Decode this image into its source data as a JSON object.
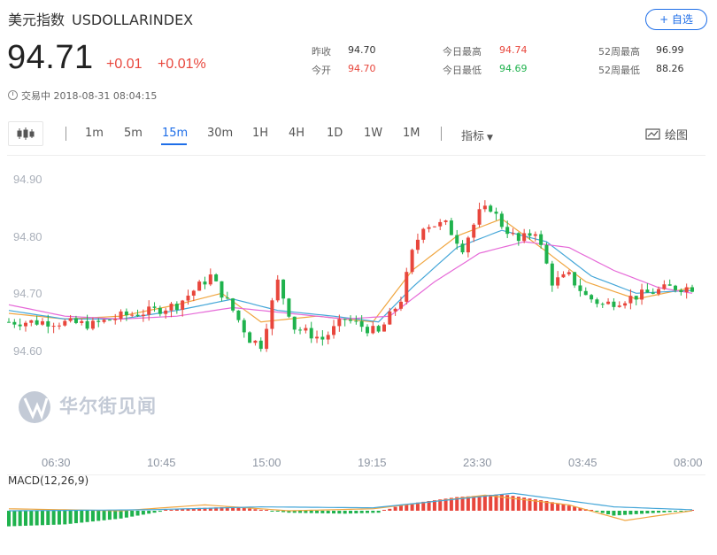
{
  "header": {
    "name": "美元指数",
    "symbol": "USDOLLARINDEX",
    "follow_label": "+ 自选",
    "price": "94.71",
    "change": "+0.01",
    "change_pct": "+0.01%",
    "status": "交易中 2018-08-31 08:04:15"
  },
  "stats": {
    "prev_close_label": "昨收",
    "prev_close": "94.70",
    "open_label": "今开",
    "open": "94.70",
    "high_label": "今日最高",
    "high": "94.74",
    "low_label": "今日最低",
    "low": "94.69",
    "w52_high_label": "52周最高",
    "w52_high": "96.99",
    "w52_low_label": "52周最低",
    "w52_low": "88.26"
  },
  "colors": {
    "up": "#e8463c",
    "down": "#1fb24d",
    "accent": "#1e6ee8",
    "ma_short": "#f0a640",
    "ma_mid": "#44a6d8",
    "ma_long": "#e66ad8"
  },
  "toolbar": {
    "periods": [
      "1m",
      "5m",
      "15m",
      "30m",
      "1H",
      "4H",
      "1D",
      "1W",
      "1M"
    ],
    "active": "15m",
    "indicator_label": "指标",
    "draw_label": "绘图"
  },
  "icons": [
    "candlestick-icon",
    "clock-icon",
    "draw-icon",
    "chevron-down-icon"
  ],
  "watermark": "华尔街见闻",
  "chart_data": [
    {
      "type": "candlestick",
      "interval": "15m",
      "yticks": [
        "94.90",
        "94.80",
        "94.70",
        "94.60"
      ],
      "xticks": [
        "06:30",
        "10:45",
        "15:00",
        "19:15",
        "23:30",
        "03:45",
        "08:00"
      ],
      "ylim": [
        94.53,
        94.93
      ],
      "grid": false,
      "anchors": [
        {
          "i": 0,
          "v": 94.65
        },
        {
          "i": 8,
          "v": 94.65
        },
        {
          "i": 15,
          "v": 94.645
        },
        {
          "i": 20,
          "v": 94.66
        },
        {
          "i": 26,
          "v": 94.67
        },
        {
          "i": 30,
          "v": 94.68
        },
        {
          "i": 36,
          "v": 94.73
        },
        {
          "i": 40,
          "v": 94.67
        },
        {
          "i": 43,
          "v": 94.62
        },
        {
          "i": 45,
          "v": 94.61
        },
        {
          "i": 48,
          "v": 94.72
        },
        {
          "i": 51,
          "v": 94.64
        },
        {
          "i": 56,
          "v": 94.62
        },
        {
          "i": 60,
          "v": 94.655
        },
        {
          "i": 66,
          "v": 94.63
        },
        {
          "i": 70,
          "v": 94.69
        },
        {
          "i": 72,
          "v": 94.77
        },
        {
          "i": 74,
          "v": 94.82
        },
        {
          "i": 78,
          "v": 94.82
        },
        {
          "i": 81,
          "v": 94.78
        },
        {
          "i": 84,
          "v": 94.84
        },
        {
          "i": 86,
          "v": 94.85
        },
        {
          "i": 88,
          "v": 94.82
        },
        {
          "i": 91,
          "v": 94.79
        },
        {
          "i": 94,
          "v": 94.81
        },
        {
          "i": 97,
          "v": 94.72
        },
        {
          "i": 100,
          "v": 94.73
        },
        {
          "i": 103,
          "v": 94.695
        },
        {
          "i": 106,
          "v": 94.68
        },
        {
          "i": 110,
          "v": 94.69
        },
        {
          "i": 114,
          "v": 94.7
        },
        {
          "i": 118,
          "v": 94.71
        },
        {
          "i": 122,
          "v": 94.71
        }
      ],
      "moving_averages": [
        {
          "anchors": [
            {
              "i": 0,
              "v": 94.665
            },
            {
              "i": 10,
              "v": 94.655
            },
            {
              "i": 20,
              "v": 94.66
            },
            {
              "i": 30,
              "v": 94.68
            },
            {
              "i": 38,
              "v": 94.7
            },
            {
              "i": 45,
              "v": 94.65
            },
            {
              "i": 55,
              "v": 94.66
            },
            {
              "i": 65,
              "v": 94.65
            },
            {
              "i": 72,
              "v": 94.74
            },
            {
              "i": 80,
              "v": 94.8
            },
            {
              "i": 88,
              "v": 94.83
            },
            {
              "i": 95,
              "v": 94.78
            },
            {
              "i": 103,
              "v": 94.72
            },
            {
              "i": 112,
              "v": 94.69
            },
            {
              "i": 122,
              "v": 94.71
            }
          ]
        },
        {
          "anchors": [
            {
              "i": 0,
              "v": 94.67
            },
            {
              "i": 10,
              "v": 94.655
            },
            {
              "i": 20,
              "v": 94.655
            },
            {
              "i": 30,
              "v": 94.67
            },
            {
              "i": 40,
              "v": 94.69
            },
            {
              "i": 48,
              "v": 94.67
            },
            {
              "i": 58,
              "v": 94.66
            },
            {
              "i": 66,
              "v": 94.65
            },
            {
              "i": 72,
              "v": 94.71
            },
            {
              "i": 80,
              "v": 94.78
            },
            {
              "i": 88,
              "v": 94.81
            },
            {
              "i": 96,
              "v": 94.79
            },
            {
              "i": 104,
              "v": 94.73
            },
            {
              "i": 112,
              "v": 94.7
            },
            {
              "i": 122,
              "v": 94.705
            }
          ]
        },
        {
          "anchors": [
            {
              "i": 0,
              "v": 94.68
            },
            {
              "i": 10,
              "v": 94.66
            },
            {
              "i": 20,
              "v": 94.655
            },
            {
              "i": 30,
              "v": 94.66
            },
            {
              "i": 40,
              "v": 94.675
            },
            {
              "i": 50,
              "v": 94.665
            },
            {
              "i": 60,
              "v": 94.655
            },
            {
              "i": 68,
              "v": 94.66
            },
            {
              "i": 76,
              "v": 94.72
            },
            {
              "i": 84,
              "v": 94.77
            },
            {
              "i": 92,
              "v": 94.79
            },
            {
              "i": 100,
              "v": 94.78
            },
            {
              "i": 108,
              "v": 94.74
            },
            {
              "i": 116,
              "v": 94.71
            },
            {
              "i": 122,
              "v": 94.7
            }
          ]
        }
      ]
    },
    {
      "type": "macd",
      "label": "MACD(12,26,9)",
      "anchors": [
        {
          "i": 0,
          "v": -0.8
        },
        {
          "i": 10,
          "v": -0.7
        },
        {
          "i": 20,
          "v": -0.4
        },
        {
          "i": 30,
          "v": 0.1
        },
        {
          "i": 40,
          "v": 0.2
        },
        {
          "i": 50,
          "v": -0.1
        },
        {
          "i": 60,
          "v": -0.15
        },
        {
          "i": 66,
          "v": -0.1
        },
        {
          "i": 70,
          "v": 0.3
        },
        {
          "i": 80,
          "v": 0.7
        },
        {
          "i": 88,
          "v": 0.85
        },
        {
          "i": 96,
          "v": 0.5
        },
        {
          "i": 102,
          "v": 0.15
        },
        {
          "i": 108,
          "v": -0.25
        },
        {
          "i": 116,
          "v": -0.1
        },
        {
          "i": 122,
          "v": 0.0
        }
      ],
      "dif_anchors": [
        {
          "i": 0,
          "v": 0.1
        },
        {
          "i": 20,
          "v": 0.0
        },
        {
          "i": 35,
          "v": 0.3
        },
        {
          "i": 50,
          "v": 0.0
        },
        {
          "i": 65,
          "v": 0.1
        },
        {
          "i": 85,
          "v": 0.8
        },
        {
          "i": 100,
          "v": 0.3
        },
        {
          "i": 110,
          "v": -0.5
        },
        {
          "i": 122,
          "v": 0.0
        }
      ],
      "dea_anchors": [
        {
          "i": 0,
          "v": 0.0
        },
        {
          "i": 25,
          "v": 0.05
        },
        {
          "i": 45,
          "v": 0.2
        },
        {
          "i": 65,
          "v": 0.15
        },
        {
          "i": 90,
          "v": 0.9
        },
        {
          "i": 108,
          "v": 0.2
        },
        {
          "i": 122,
          "v": 0.05
        }
      ]
    }
  ]
}
